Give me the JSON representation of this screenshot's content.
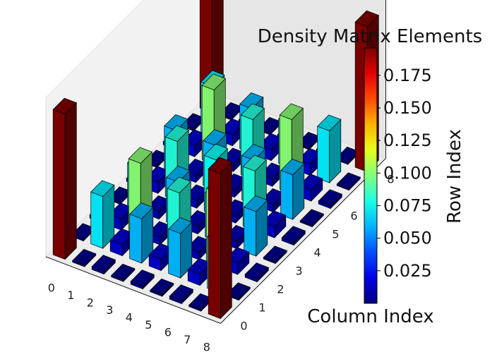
{
  "chart_data": {
    "type": "bar3d",
    "title": "Density Matrix Elements",
    "xlabel": "Column Index",
    "ylabel": "Row Index",
    "x_ticks": [
      "0",
      "1",
      "2",
      "3",
      "4",
      "5",
      "6",
      "7",
      "8"
    ],
    "y_ticks": [
      "0",
      "1",
      "2",
      "3",
      "4",
      "5",
      "6",
      "7",
      "8"
    ],
    "colormap": "jet",
    "zlim": [
      0,
      0.2
    ],
    "colorbar": {
      "min": 0.0,
      "max": 0.196,
      "ticks": [
        "0.025",
        "0.050",
        "0.075",
        "0.100",
        "0.125",
        "0.150",
        "0.175"
      ]
    },
    "values": [
      [
        0.196,
        0.002,
        0.004,
        0.002,
        0.004,
        0.002,
        0.004,
        0.002,
        0.196
      ],
      [
        0.002,
        0.07,
        0.015,
        0.06,
        0.015,
        0.06,
        0.015,
        0.07,
        0.002
      ],
      [
        0.004,
        0.015,
        0.1,
        0.01,
        0.08,
        0.01,
        0.1,
        0.015,
        0.004
      ],
      [
        0.002,
        0.06,
        0.01,
        0.06,
        0.01,
        0.06,
        0.01,
        0.06,
        0.002
      ],
      [
        0.004,
        0.015,
        0.08,
        0.01,
        0.075,
        0.01,
        0.08,
        0.015,
        0.004
      ],
      [
        0.002,
        0.06,
        0.01,
        0.06,
        0.01,
        0.06,
        0.01,
        0.06,
        0.002
      ],
      [
        0.004,
        0.015,
        0.1,
        0.01,
        0.08,
        0.01,
        0.1,
        0.015,
        0.004
      ],
      [
        0.002,
        0.07,
        0.015,
        0.06,
        0.015,
        0.06,
        0.015,
        0.07,
        0.002
      ],
      [
        0.196,
        0.002,
        0.004,
        0.002,
        0.004,
        0.002,
        0.004,
        0.002,
        0.196
      ]
    ]
  }
}
